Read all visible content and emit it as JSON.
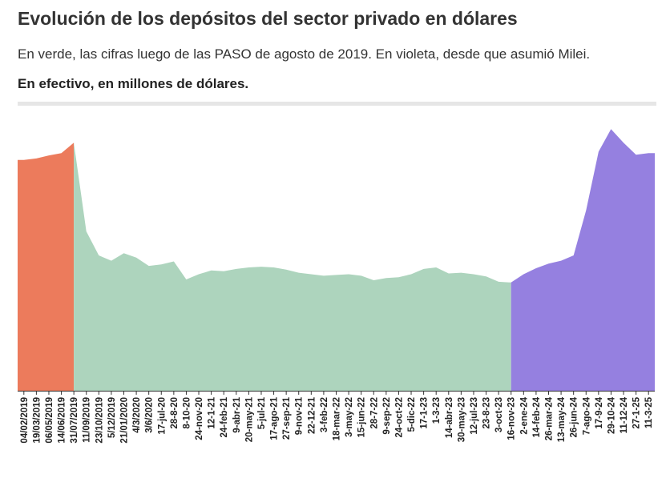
{
  "header": {
    "title": "Evolución de los depósitos del sector privado en dólares",
    "subtitle": "En verde, las cifras luego de las PASO de agosto de 2019. En violeta, desde que asumió Milei.",
    "unit_label": "En efectivo, en millones de dólares."
  },
  "chart_data": {
    "type": "area",
    "title": "Evolución de los depósitos del sector privado en dólares",
    "ylabel": "En efectivo, en millones de dólares.",
    "ylim": [
      0,
      36000
    ],
    "grid": false,
    "y_axis_visible": false,
    "colors": {
      "pre_paso": "#ec7b5c",
      "post_paso": "#add4bd",
      "milei": "#9580e0"
    },
    "x_tick_labels": [
      "04/02/2019",
      "19/03/2019",
      "06/05/2019",
      "14/06/2019",
      "31/07/2019",
      "11/09/2019",
      "23/10/2019",
      "5/12/2019",
      "21/01/2020",
      "4/3/2020",
      "3/6/2020",
      "17-jul-20",
      "28-8-20",
      "8-10-20",
      "24-nov-20",
      "12-1-21",
      "24-feb-21",
      "9-abr-21",
      "20-may-21",
      "5-jul-21",
      "17-ago-21",
      "27-sep-21",
      "9-nov-21",
      "22-12-21",
      "3-feb-22",
      "18-mar-22",
      "3-may-22",
      "15-jun-22",
      "28-7-22",
      "9-sep-22",
      "24-oct-22",
      "5-dic-22",
      "17-1-23",
      "1-3-23",
      "14-abr-23",
      "30-may-23",
      "12-jul-23",
      "23-8-23",
      "3-oct-23",
      "16-nov-23",
      "2-ene-24",
      "14-feb-24",
      "26-mar-24",
      "13-may-24",
      "26-jun-24",
      "7-ago-24",
      "17-9-24",
      "29-10-24",
      "11-12-24",
      "27-1-25",
      "11-3-25"
    ],
    "series": [
      {
        "x": [
          "04/02/2019",
          "19/03/2019",
          "06/05/2019",
          "14/06/2019",
          "31/07/2019"
        ],
        "values": [
          30700,
          30900,
          31300,
          31600,
          33000
        ]
      },
      {
        "x": [
          "31/07/2019",
          "11/09/2019",
          "23/10/2019",
          "5/12/2019",
          "21/01/2020",
          "4/3/2020",
          "3/6/2020",
          "17-jul-20",
          "28-8-20",
          "8-10-20",
          "24-nov-20",
          "12-1-21",
          "24-feb-21",
          "9-abr-21",
          "20-may-21",
          "5-jul-21",
          "17-ago-21",
          "27-sep-21",
          "9-nov-21",
          "22-12-21",
          "3-feb-22",
          "18-mar-22",
          "3-may-22",
          "15-jun-22",
          "28-7-22",
          "9-sep-22",
          "24-oct-22",
          "5-dic-22",
          "17-1-23",
          "1-3-23",
          "14-abr-23",
          "30-may-23",
          "12-jul-23",
          "23-8-23",
          "3-oct-23",
          "16-nov-23"
        ],
        "values": [
          33000,
          21200,
          18000,
          17300,
          18300,
          17700,
          16600,
          16800,
          17200,
          14800,
          15500,
          16000,
          15900,
          16200,
          16400,
          16500,
          16400,
          16100,
          15700,
          15500,
          15300,
          15400,
          15500,
          15300,
          14700,
          15000,
          15100,
          15500,
          16200,
          16400,
          15600,
          15700,
          15500,
          15200,
          14500,
          14400
        ]
      },
      {
        "x": [
          "16-nov-23",
          "2-ene-24",
          "14-feb-24",
          "26-mar-24",
          "13-may-24",
          "26-jun-24",
          "7-ago-24",
          "17-9-24",
          "29-10-24",
          "11-12-24",
          "27-1-25",
          "11-3-25"
        ],
        "values": [
          14400,
          15500,
          16300,
          16900,
          17300,
          18000,
          24000,
          31800,
          34800,
          33000,
          31400,
          31600
        ]
      }
    ]
  }
}
